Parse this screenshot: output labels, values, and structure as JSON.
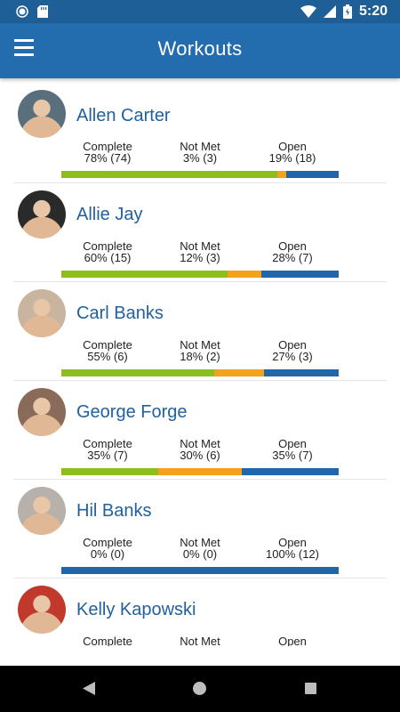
{
  "status": {
    "time": "5:20"
  },
  "header": {
    "title": "Workouts"
  },
  "colors": {
    "complete": "#8cbf1c",
    "not_met": "#f5a21b",
    "open": "#2166ab",
    "appbar": "#236cae"
  },
  "labels": {
    "complete": "Complete",
    "not_met": "Not Met",
    "open": "Open"
  },
  "users": [
    {
      "name": "Allen Carter",
      "complete": "78% (74)",
      "not_met": "3% (3)",
      "open": "19% (18)",
      "pct": [
        78,
        3,
        19
      ],
      "avatar_bg": "#5a6f7c"
    },
    {
      "name": "Allie Jay",
      "complete": "60% (15)",
      "not_met": "12% (3)",
      "open": "28% (7)",
      "pct": [
        60,
        12,
        28
      ],
      "avatar_bg": "#2a2a2a"
    },
    {
      "name": "Carl Banks",
      "complete": "55% (6)",
      "not_met": "18% (2)",
      "open": "27% (3)",
      "pct": [
        55,
        18,
        27
      ],
      "avatar_bg": "#c9b4a0"
    },
    {
      "name": "George Forge",
      "complete": "35% (7)",
      "not_met": "30% (6)",
      "open": "35% (7)",
      "pct": [
        35,
        30,
        35
      ],
      "avatar_bg": "#8a6a58"
    },
    {
      "name": "Hil Banks",
      "complete": "0% (0)",
      "not_met": "0% (0)",
      "open": "100% (12)",
      "pct": [
        0,
        0,
        100
      ],
      "avatar_bg": "#b8b0aa"
    },
    {
      "name": "Kelly Kapowski",
      "complete": "",
      "not_met": "",
      "open": "",
      "pct": [
        0,
        0,
        0
      ],
      "avatar_bg": "#c0392b"
    }
  ]
}
